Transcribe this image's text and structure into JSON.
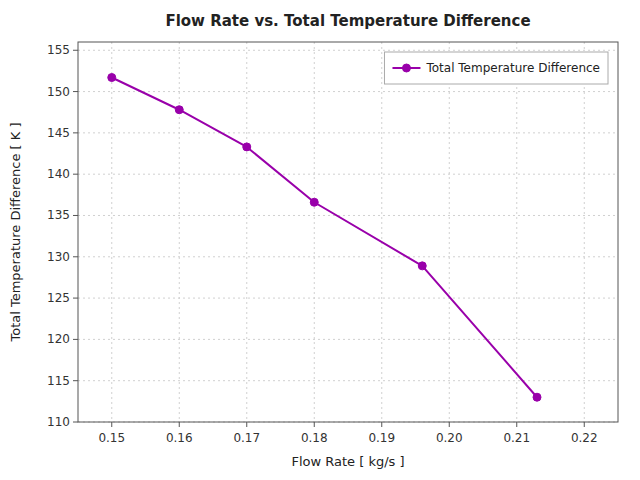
{
  "chart_data": {
    "type": "line",
    "title": "Flow Rate vs. Total Temperature Difference",
    "xlabel": "Flow Rate [ kg/s ]",
    "ylabel": "Total Temperature Difference [ K ]",
    "x": [
      0.15,
      0.16,
      0.17,
      0.18,
      0.196,
      0.213
    ],
    "series": [
      {
        "name": "Total Temperature Difference",
        "color": "#9900AA",
        "marker": "circle",
        "line_style": "solid",
        "values": [
          151.7,
          147.8,
          143.3,
          136.6,
          128.9,
          113.0
        ]
      }
    ],
    "xlim": [
      0.145,
      0.225
    ],
    "ylim": [
      110,
      156
    ],
    "xticks": [
      0.15,
      0.16,
      0.17,
      0.18,
      0.19,
      {
        "value": 0.2,
        "label": "0.20"
      },
      0.21,
      0.22
    ],
    "yticks": [
      110,
      115,
      120,
      125,
      130,
      135,
      140,
      145,
      150,
      155
    ],
    "grid": true,
    "legend": "upper right"
  }
}
